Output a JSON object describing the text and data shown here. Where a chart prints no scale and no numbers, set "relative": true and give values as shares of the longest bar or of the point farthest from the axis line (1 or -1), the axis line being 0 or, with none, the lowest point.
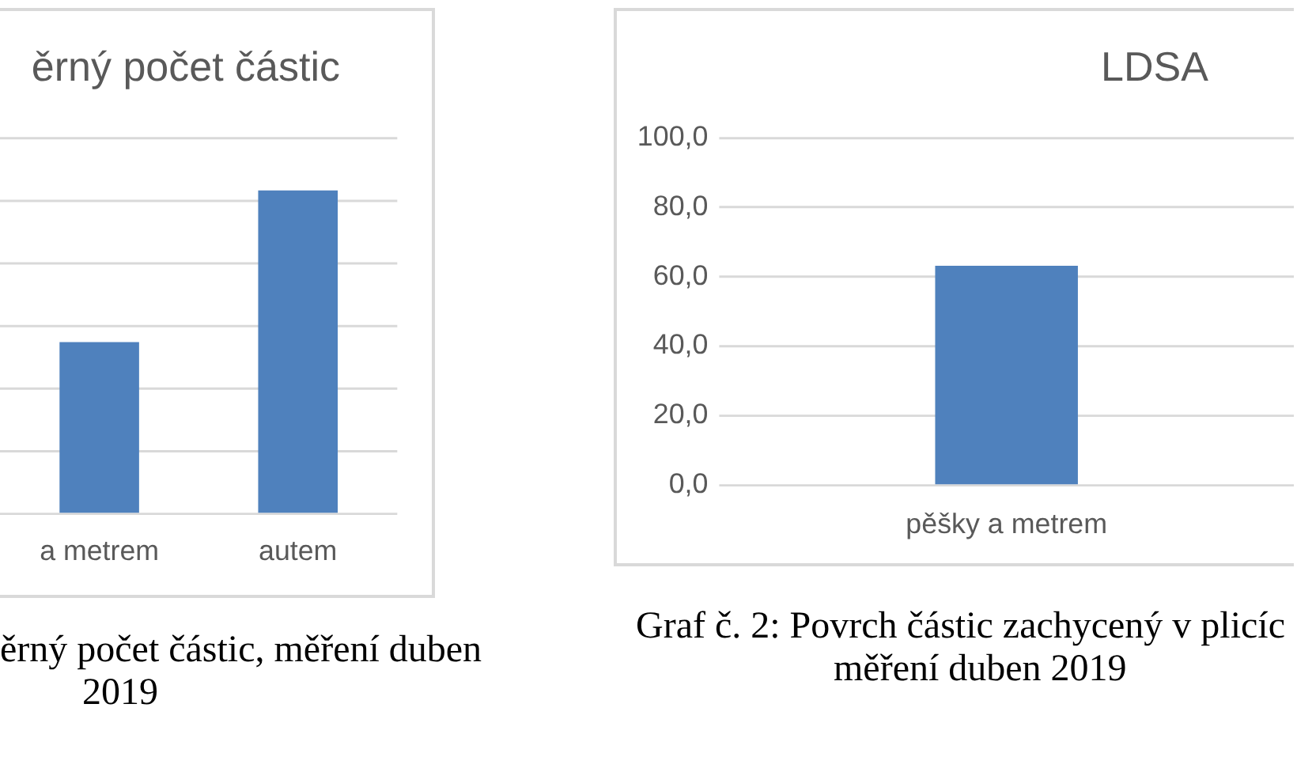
{
  "chart_data": [
    {
      "type": "bar",
      "title": "ěrný počet částic",
      "categories": [
        "a metrem",
        "autem"
      ],
      "values": [
        0.53,
        1
      ],
      "color": "#4f81bd",
      "relative": true,
      "grid": "y",
      "annotations": [
        "ěrný počet částic, měření duben 2019"
      ]
    },
    {
      "type": "bar",
      "title": "LDSA",
      "categories": [
        "pěšky a metrem"
      ],
      "values": [
        63
      ],
      "color": "#4f81bd",
      "ylim": [
        0,
        100
      ],
      "yticks": [
        {
          "value": 0,
          "label": "0,0"
        },
        {
          "value": 20,
          "label": "20,0"
        },
        {
          "value": 40,
          "label": "40,0"
        },
        {
          "value": 60,
          "label": "60,0"
        },
        {
          "value": 80,
          "label": "80,0"
        },
        {
          "value": 100,
          "label": "100,0"
        }
      ],
      "grid": "y",
      "annotations": [
        "Graf č. 2: Povrch částic zachycený v plicíc měření duben 2019"
      ]
    }
  ]
}
